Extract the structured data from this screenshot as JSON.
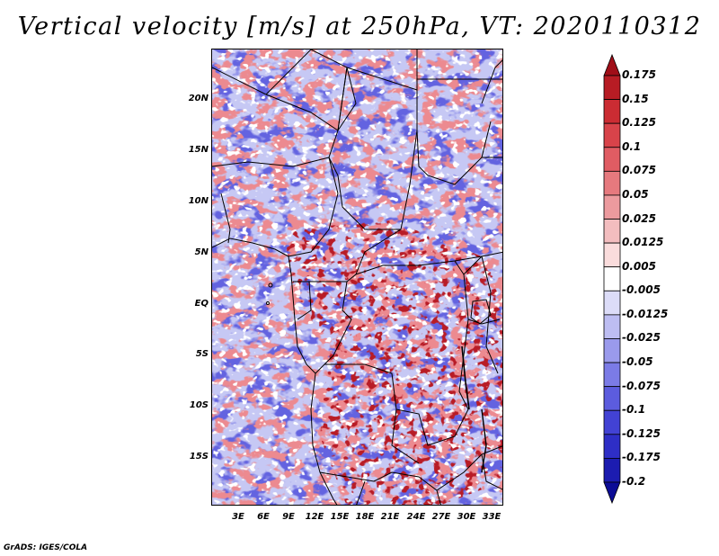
{
  "title": "Vertical velocity [m/s] at 250hPa, VT: 2020110312",
  "footer": "GrADS: IGES/COLA",
  "lat_ticks": [
    "20N",
    "15N",
    "10N",
    "5N",
    "EQ",
    "5S",
    "10S",
    "15S"
  ],
  "lon_ticks": [
    "3E",
    "6E",
    "9E",
    "12E",
    "15E",
    "18E",
    "21E",
    "24E",
    "27E",
    "30E",
    "33E"
  ],
  "colorbar": {
    "labels": [
      "0.175",
      "0.15",
      "0.125",
      "0.1",
      "0.075",
      "0.05",
      "0.025",
      "0.0125",
      "0.005",
      "-0.005",
      "-0.0125",
      "-0.025",
      "-0.05",
      "-0.075",
      "-0.1",
      "-0.125",
      "-0.175",
      "-0.2"
    ],
    "colors": [
      "#a00e18",
      "#b71c24",
      "#cb2c33",
      "#d8434a",
      "#e05c63",
      "#e6797e",
      "#ec9a9e",
      "#f3bdbf",
      "#fadcdc",
      "#ffffff",
      "#dcdcf8",
      "#bdbdf2",
      "#9a9aec",
      "#7b7be6",
      "#5c5cde",
      "#4242d4",
      "#2e2ec6",
      "#1c1cb0",
      "#0c0c96"
    ]
  },
  "map_colors": {
    "positive": "#e05560",
    "strong_positive": "#b81c28",
    "negative": "#6a6ae2",
    "strong_negative": "#3030c4",
    "background": "#d8daf6"
  }
}
